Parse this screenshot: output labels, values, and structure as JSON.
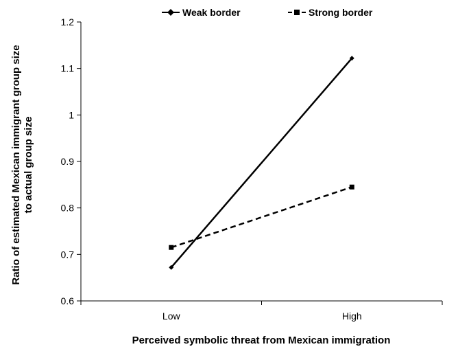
{
  "chart_data": {
    "type": "line",
    "categories": [
      "Low",
      "High"
    ],
    "series": [
      {
        "name": "Weak border",
        "values": [
          0.672,
          1.122
        ],
        "style": "solid",
        "marker": "diamond",
        "color": "#000000"
      },
      {
        "name": "Strong border",
        "values": [
          0.715,
          0.845
        ],
        "style": "dashed",
        "marker": "square",
        "color": "#000000"
      }
    ],
    "xlabel": "Perceived symbolic threat from Mexican immigration",
    "ylabel": "Ratio of estimated Mexican immigrant group size to actual group size",
    "ylabel_lines": [
      "Ratio of estimated Mexican immigrant group size",
      "to actual group size"
    ],
    "ylim": [
      0.6,
      1.2
    ],
    "yticks": [
      "0.6",
      "0.7",
      "0.8",
      "0.9",
      "1",
      "1.1",
      "1.2"
    ],
    "legend_position": "top-center",
    "grid": false
  }
}
